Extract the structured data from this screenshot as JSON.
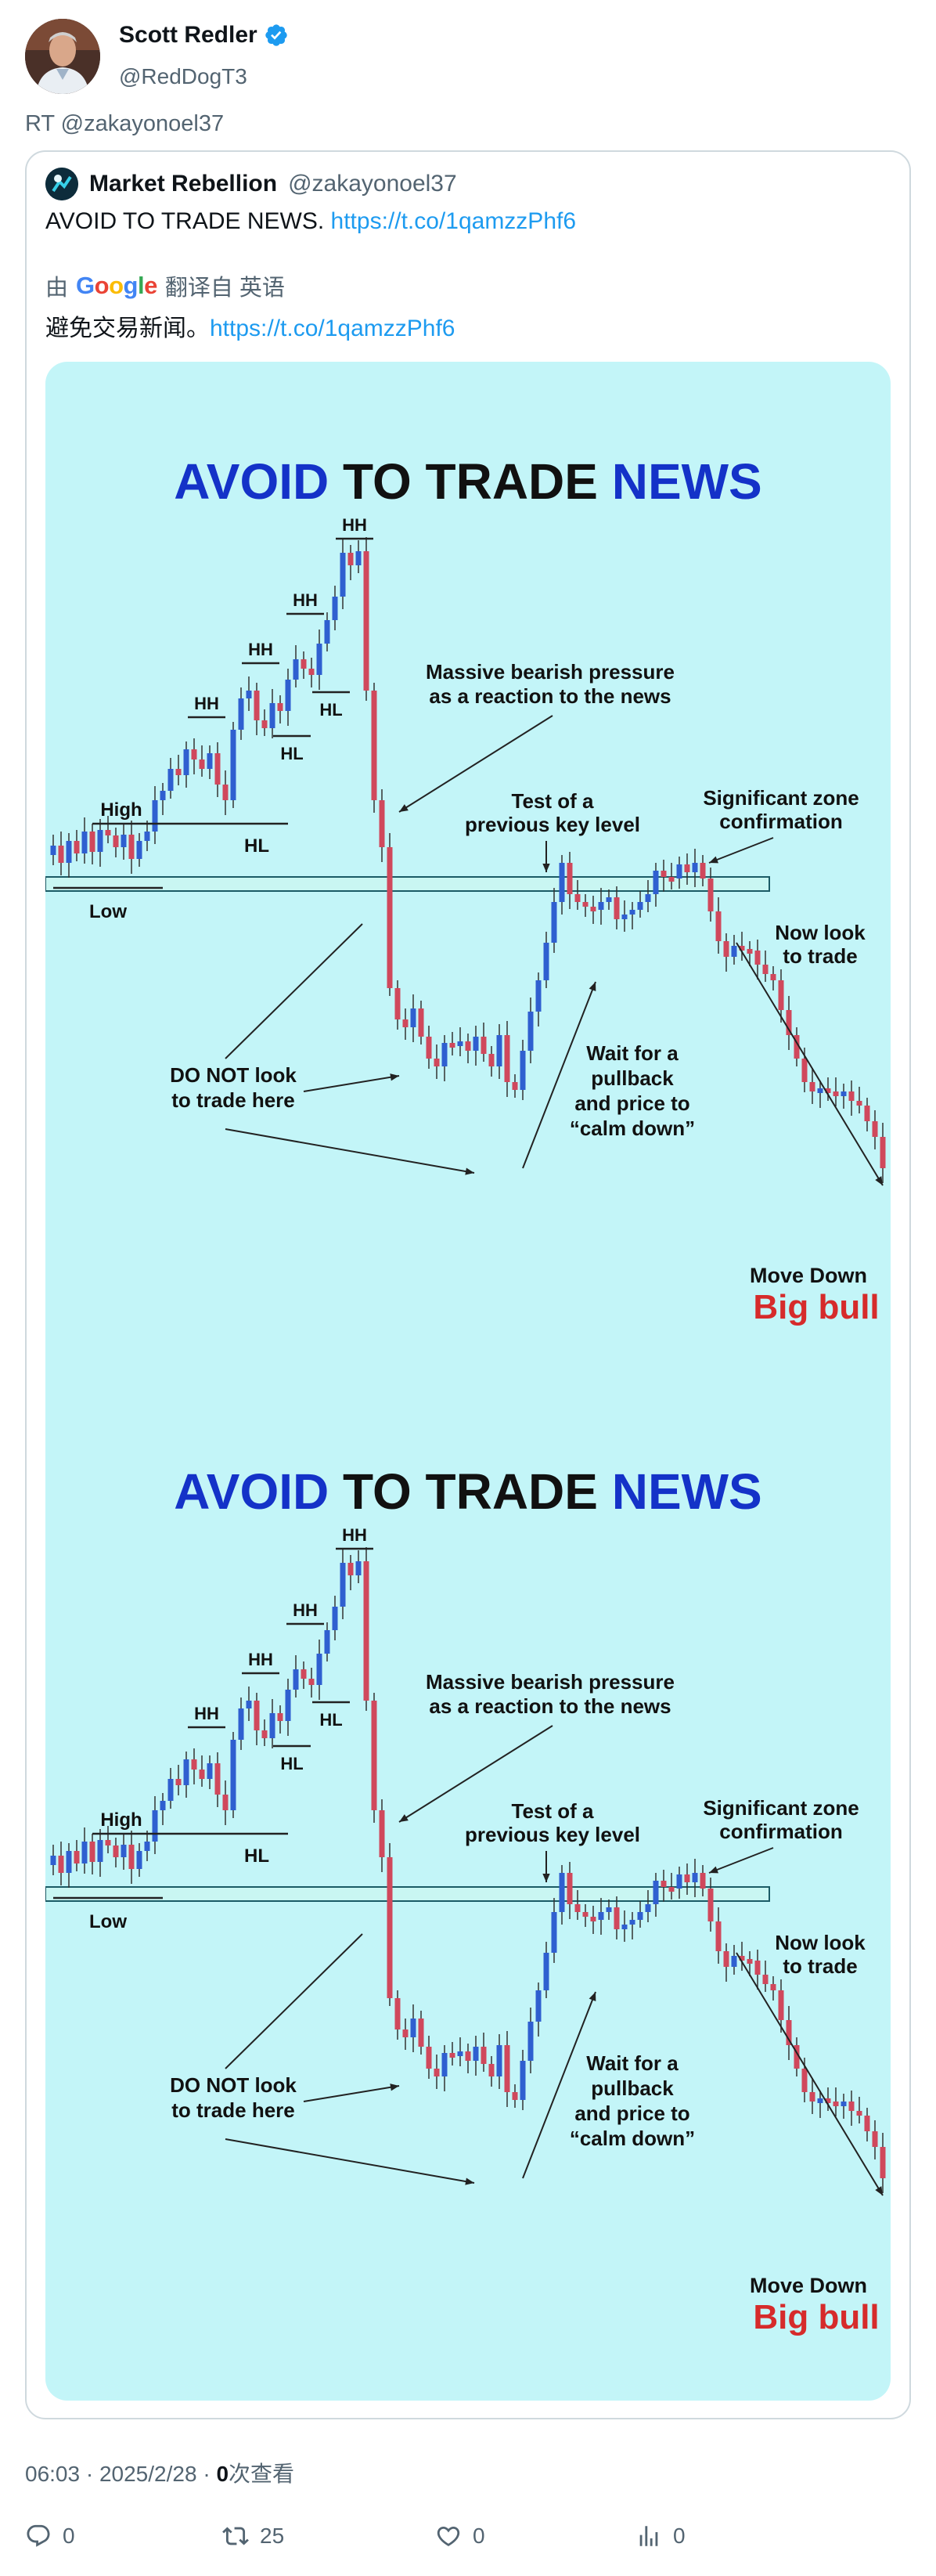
{
  "author": {
    "name": "Scott Redler",
    "handle": "@RedDogT3",
    "verified_badge": "verified-badge-icon"
  },
  "retweet_line": "RT @zakayonoel37",
  "quoted": {
    "name": "Market Rebellion",
    "handle": "@zakayonoel37",
    "text": "AVOID TO TRADE NEWS.",
    "link": "https://t.co/1qamzzPhf6",
    "translate_prefix": "由",
    "translate_brand": "Google",
    "translate_suffix": "翻译自 英语",
    "translated_text": "避免交易新闻。",
    "translated_link": "https://t.co/1qamzzPhf6"
  },
  "infographic": {
    "title_part1": "AVOID",
    "title_part2": "TO TRADE",
    "title_part3": "NEWS",
    "labels": {
      "hh": "HH",
      "hl": "HL",
      "high": "High",
      "low": "Low",
      "massive1": "Massive bearish pressure",
      "massive2": "as a reaction to the news",
      "test1": "Test of a",
      "test2": "previous key level",
      "sig1": "Significant zone",
      "sig2": "confirmation",
      "now1": "Now look",
      "now2": "to trade",
      "dont1": "DO NOT look",
      "dont2": "to trade here",
      "wait1": "Wait for a",
      "wait2": "pullback",
      "wait3": "and price to",
      "wait4": "“calm down”",
      "move_down": "Move Down",
      "big_bull": "Big bull"
    },
    "colors": {
      "background": "#c3f5f8",
      "blue": "#1432c8",
      "bull_candle": "#2f5fd0",
      "bear_candle": "#d0485c",
      "brand_red": "#d62b2b"
    }
  },
  "meta": {
    "time": "06:03",
    "date": "2025/2/28",
    "views_count": "0",
    "views_label": "次查看"
  },
  "actions": {
    "reply_count": "0",
    "retweet_count": "25",
    "like_count": "0",
    "views_count": "0"
  }
}
